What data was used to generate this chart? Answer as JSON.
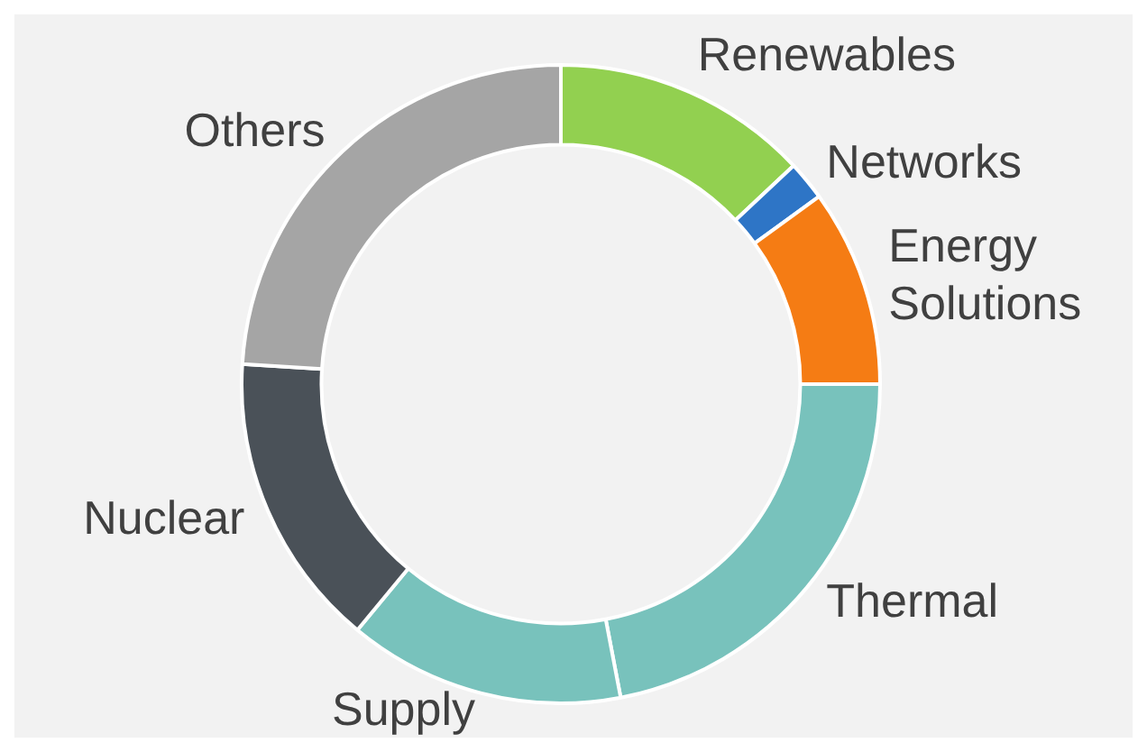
{
  "chart_data": {
    "type": "donut",
    "categories": [
      "Renewables",
      "Networks",
      "Energy Solutions",
      "Thermal",
      "Supply",
      "Nuclear",
      "Others"
    ],
    "values": [
      13,
      2,
      10,
      22,
      14,
      15,
      24
    ],
    "colors": [
      "#92d050",
      "#2e75c6",
      "#f57c14",
      "#78c2bc",
      "#78c2bc",
      "#4a5158",
      "#a5a5a5"
    ],
    "legend": false
  }
}
